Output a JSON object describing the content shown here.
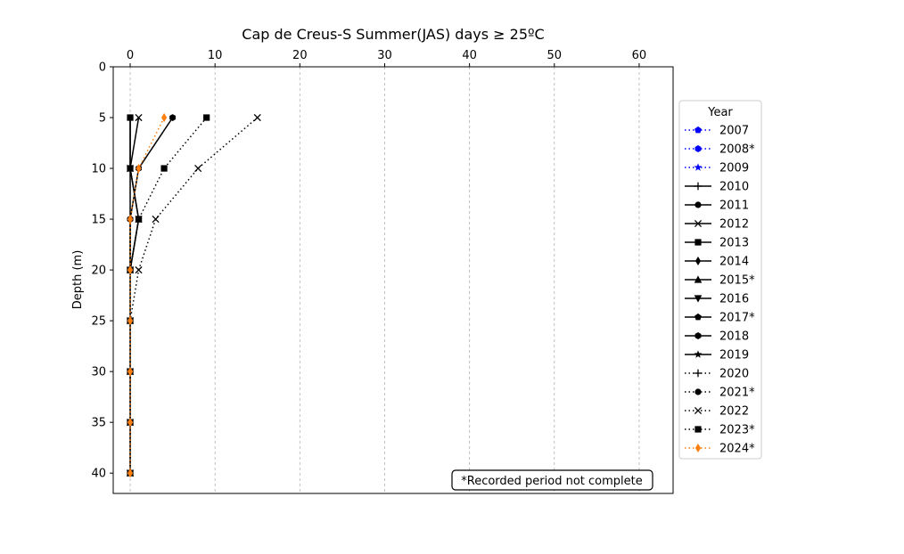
{
  "chart_data": {
    "type": "line",
    "title": "Cap de Creus-S Summer(JAS) days ≥ 25ºC",
    "xlabel": "",
    "ylabel": "Depth (m)",
    "xlim": [
      -2,
      64
    ],
    "ylim": [
      42,
      0
    ],
    "x_axis_position": "top",
    "y_inverted": true,
    "x_ticks": [
      0,
      10,
      20,
      30,
      40,
      50,
      60
    ],
    "y_ticks": [
      0,
      5,
      10,
      15,
      20,
      25,
      30,
      35,
      40
    ],
    "grid": "vertical-dashed",
    "legend_title": "Year",
    "legend_placement": "right-outside",
    "annotation": "*Recorded period not complete",
    "series": [
      {
        "name": "2007",
        "color": "#0000ff",
        "linestyle": "dotted",
        "marker": "pentagon",
        "points": []
      },
      {
        "name": "2008*",
        "color": "#0000ff",
        "linestyle": "dotted",
        "marker": "hexagon",
        "points": []
      },
      {
        "name": "2009",
        "color": "#0000ff",
        "linestyle": "dotted",
        "marker": "star",
        "points": []
      },
      {
        "name": "2010",
        "color": "#000000",
        "linestyle": "solid",
        "marker": "plus",
        "points": []
      },
      {
        "name": "2011",
        "color": "#000000",
        "linestyle": "solid",
        "marker": "circle",
        "points": [
          [
            0,
            5
          ],
          [
            0,
            10
          ],
          [
            0,
            15
          ],
          [
            0,
            20
          ]
        ]
      },
      {
        "name": "2012",
        "color": "#000000",
        "linestyle": "solid",
        "marker": "x",
        "points": [
          [
            1,
            5
          ],
          [
            0,
            10
          ],
          [
            1,
            15
          ],
          [
            0,
            20
          ]
        ]
      },
      {
        "name": "2013",
        "color": "#000000",
        "linestyle": "solid",
        "marker": "square",
        "points": [
          [
            0,
            5
          ],
          [
            0,
            10
          ],
          [
            1,
            15
          ],
          [
            0,
            20
          ]
        ]
      },
      {
        "name": "2014",
        "color": "#000000",
        "linestyle": "solid",
        "marker": "diamond",
        "points": []
      },
      {
        "name": "2015*",
        "color": "#000000",
        "linestyle": "solid",
        "marker": "triangle-up",
        "points": []
      },
      {
        "name": "2016",
        "color": "#000000",
        "linestyle": "solid",
        "marker": "triangle-down",
        "points": []
      },
      {
        "name": "2017*",
        "color": "#000000",
        "linestyle": "solid",
        "marker": "pentagon",
        "points": []
      },
      {
        "name": "2018",
        "color": "#000000",
        "linestyle": "solid",
        "marker": "hexagon",
        "points": [
          [
            5,
            5
          ],
          [
            1,
            10
          ],
          [
            0,
            15
          ],
          [
            0,
            20
          ],
          [
            0,
            25
          ],
          [
            0,
            30
          ],
          [
            0,
            35
          ],
          [
            0,
            40
          ]
        ]
      },
      {
        "name": "2019",
        "color": "#000000",
        "linestyle": "solid",
        "marker": "star",
        "points": []
      },
      {
        "name": "2020",
        "color": "#000000",
        "linestyle": "dotted",
        "marker": "plus",
        "points": []
      },
      {
        "name": "2021*",
        "color": "#000000",
        "linestyle": "dotted",
        "marker": "circle",
        "points": []
      },
      {
        "name": "2022",
        "color": "#000000",
        "linestyle": "dotted",
        "marker": "x",
        "points": [
          [
            15,
            5
          ],
          [
            8,
            10
          ],
          [
            3,
            15
          ],
          [
            1,
            20
          ],
          [
            0,
            25
          ],
          [
            0,
            30
          ],
          [
            0,
            35
          ],
          [
            0,
            40
          ]
        ]
      },
      {
        "name": "2023*",
        "color": "#000000",
        "linestyle": "dotted",
        "marker": "square",
        "points": [
          [
            9,
            5
          ],
          [
            4,
            10
          ],
          [
            1,
            15
          ],
          [
            0,
            20
          ],
          [
            0,
            25
          ],
          [
            0,
            30
          ],
          [
            0,
            35
          ],
          [
            0,
            40
          ]
        ]
      },
      {
        "name": "2024*",
        "color": "#ff7f0e",
        "linestyle": "dotted",
        "marker": "diamond",
        "points": [
          [
            4,
            5
          ],
          [
            1,
            10
          ],
          [
            0,
            15
          ],
          [
            0,
            20
          ],
          [
            0,
            25
          ],
          [
            0,
            30
          ],
          [
            0,
            35
          ],
          [
            0,
            40
          ]
        ]
      }
    ]
  }
}
